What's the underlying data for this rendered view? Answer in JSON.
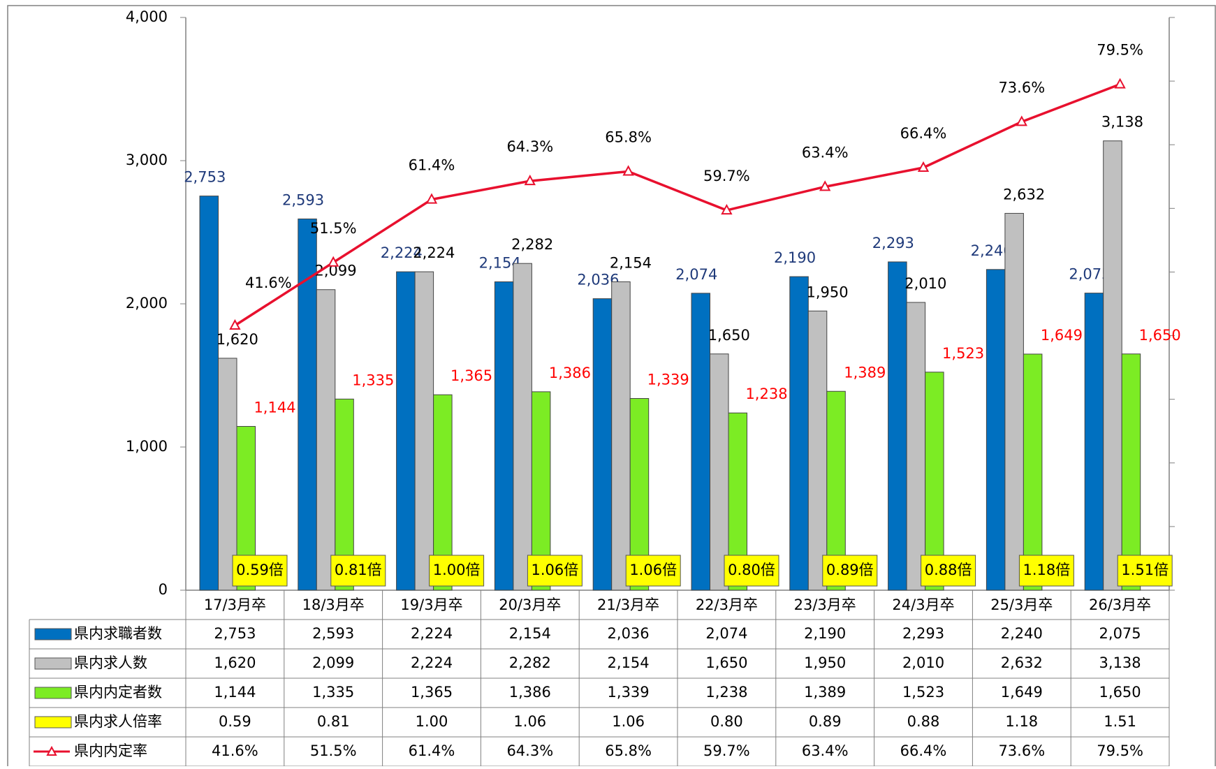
{
  "chart_data": {
    "type": "bar",
    "categories": [
      "17/3月卒",
      "18/3月卒",
      "19/3月卒",
      "20/3月卒",
      "21/3月卒",
      "22/3月卒",
      "23/3月卒",
      "24/3月卒",
      "25/3月卒",
      "26/3月卒"
    ],
    "series": [
      {
        "name": "県内求職者数",
        "color": "#0070c0",
        "label_color": "#1f3a7a",
        "values": [
          2753,
          2593,
          2224,
          2154,
          2036,
          2074,
          2190,
          2293,
          2240,
          2075
        ],
        "value_labels": [
          "2,753",
          "2,593",
          "2,224",
          "2,154",
          "2,036",
          "2,074",
          "2,190",
          "2,293",
          "2,240",
          "2,075"
        ]
      },
      {
        "name": "県内求人数",
        "color": "#c0c0c0",
        "label_color": "#000000",
        "values": [
          1620,
          2099,
          2224,
          2282,
          2154,
          1650,
          1950,
          2010,
          2632,
          3138
        ],
        "value_labels": [
          "1,620",
          "2,099",
          "2,224",
          "2,282",
          "2,154",
          "1,650",
          "1,950",
          "2,010",
          "2,632",
          "3,138"
        ]
      },
      {
        "name": "県内内定者数",
        "color": "#7cec24",
        "label_color": "#ff0000",
        "values": [
          1144,
          1335,
          1365,
          1386,
          1339,
          1238,
          1389,
          1523,
          1649,
          1650
        ],
        "value_labels": [
          "1,144",
          "1,335",
          "1,365",
          "1,386",
          "1,339",
          "1,238",
          "1,389",
          "1,523",
          "1,649",
          "1,650"
        ]
      },
      {
        "name": "県内求人倍率",
        "color": "#ffff00",
        "type": "ratio",
        "values": [
          0.59,
          0.81,
          1.0,
          1.06,
          1.06,
          0.8,
          0.89,
          0.88,
          1.18,
          1.51
        ],
        "value_labels": [
          "0.59倍",
          "0.81倍",
          "1.00倍",
          "1.06倍",
          "1.06倍",
          "0.80倍",
          "0.89倍",
          "0.88倍",
          "1.18倍",
          "1.51倍"
        ]
      },
      {
        "name": "県内内定率",
        "color": "#e8102e",
        "type": "line",
        "axis": "y2",
        "values": [
          41.6,
          51.5,
          61.4,
          64.3,
          65.8,
          59.7,
          63.4,
          66.4,
          73.6,
          79.5
        ],
        "value_labels": [
          "41.6%",
          "51.5%",
          "61.4%",
          "64.3%",
          "65.8%",
          "59.7%",
          "63.4%",
          "66.4%",
          "73.6%",
          "79.5%"
        ]
      }
    ],
    "table": [
      [
        "2,753",
        "2,593",
        "2,224",
        "2,154",
        "2,036",
        "2,074",
        "2,190",
        "2,293",
        "2,240",
        "2,075"
      ],
      [
        "1,620",
        "2,099",
        "2,224",
        "2,282",
        "2,154",
        "1,650",
        "1,950",
        "2,010",
        "2,632",
        "3,138"
      ],
      [
        "1,144",
        "1,335",
        "1,365",
        "1,386",
        "1,339",
        "1,238",
        "1,389",
        "1,523",
        "1,649",
        "1,650"
      ],
      [
        "0.59",
        "0.81",
        "1.00",
        "1.06",
        "1.06",
        "0.80",
        "0.89",
        "0.88",
        "1.18",
        "1.51"
      ],
      [
        "41.6%",
        "51.5%",
        "61.4%",
        "64.3%",
        "65.8%",
        "59.7%",
        "63.4%",
        "66.4%",
        "73.6%",
        "79.5%"
      ]
    ],
    "ylim": [
      0,
      4000
    ],
    "yticks": [
      0,
      {
        "value": 1000,
        "label": "1,000"
      },
      {
        "value": 2000,
        "label": "2,000"
      },
      {
        "value": 3000,
        "label": "3,000"
      },
      {
        "value": 4000,
        "label": "4,000"
      }
    ],
    "y2lim": [
      0,
      90
    ],
    "y2ticks": [
      0,
      10,
      20,
      30,
      40,
      50,
      60,
      70,
      80,
      90
    ],
    "grid": false
  }
}
